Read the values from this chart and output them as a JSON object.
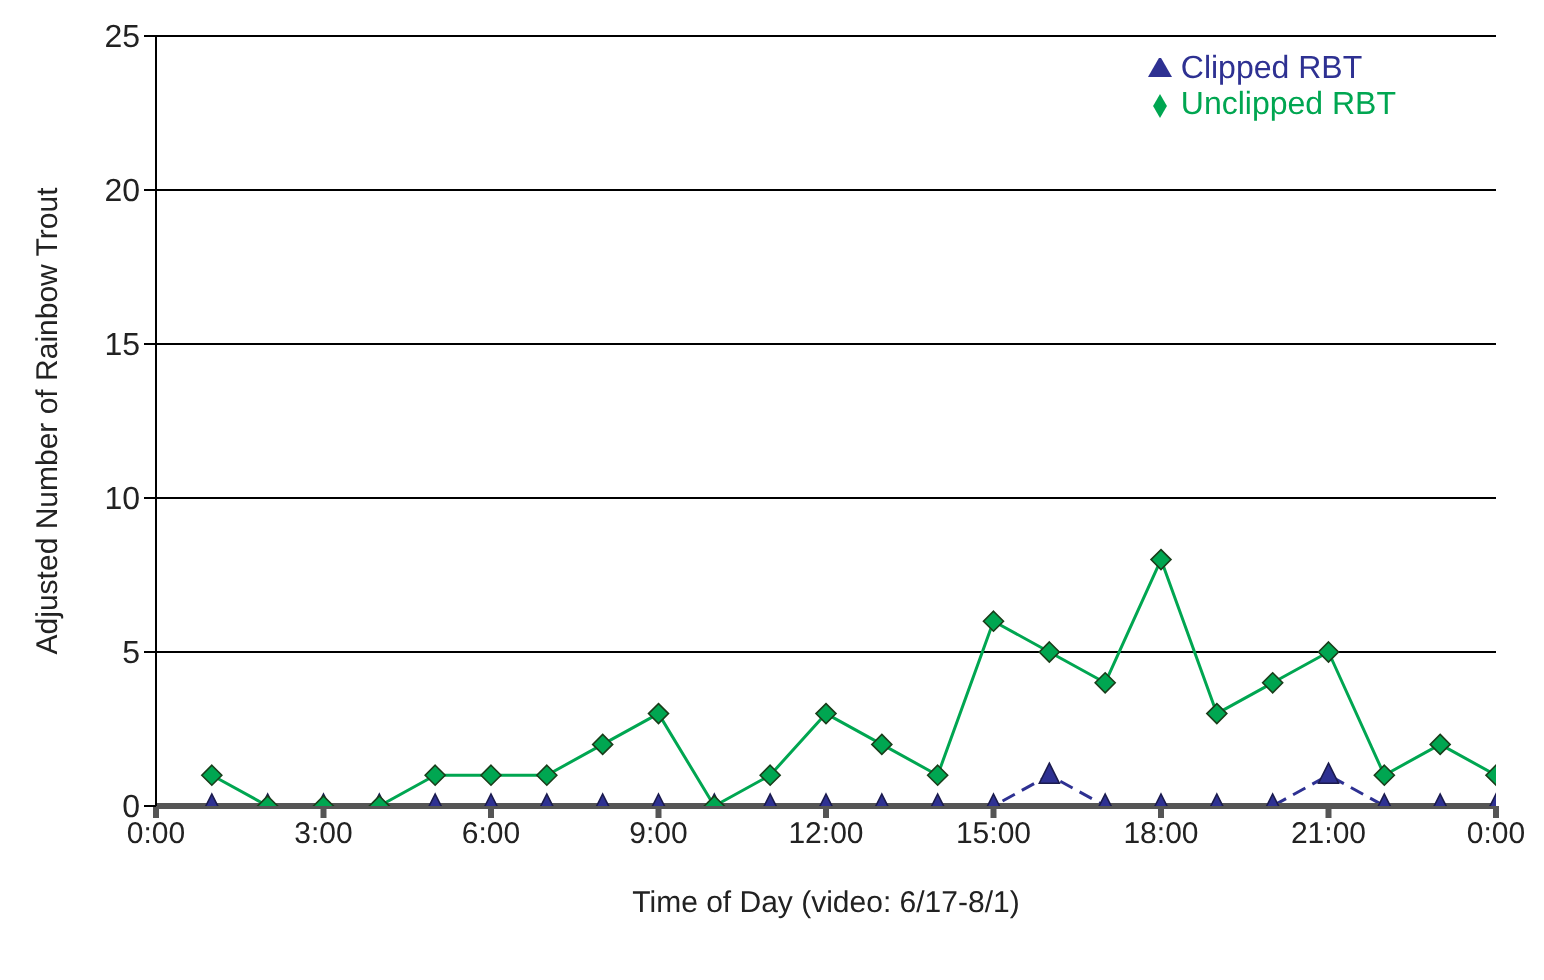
{
  "chart_data": {
    "type": "line",
    "xlabel": "Time of Day (video: 6/17-8/1)",
    "ylabel": "Adjusted Number of Rainbow Trout",
    "x": [
      1,
      2,
      3,
      4,
      5,
      6,
      7,
      8,
      9,
      10,
      11,
      12,
      13,
      14,
      15,
      16,
      17,
      18,
      19,
      20,
      21,
      22,
      23,
      24
    ],
    "series": [
      {
        "name": "Clipped RBT",
        "color": "#2e3192",
        "marker": "triangle",
        "line_style": "dashed",
        "values": [
          0,
          0,
          0,
          0,
          0,
          0,
          0,
          0,
          0,
          0,
          0,
          0,
          0,
          0,
          0,
          1,
          0,
          0,
          0,
          0,
          1,
          0,
          0,
          0
        ]
      },
      {
        "name": "Unclipped RBT",
        "color": "#00a651",
        "marker": "diamond",
        "line_style": "solid",
        "values": [
          1,
          0,
          0,
          0,
          1,
          1,
          1,
          2,
          3,
          0,
          1,
          3,
          2,
          1,
          6,
          5,
          4,
          8,
          3,
          4,
          5,
          1,
          2,
          1
        ]
      }
    ],
    "xlim": [
      0,
      24
    ],
    "xticks": [
      {
        "value": 0,
        "label": "0:00"
      },
      {
        "value": 3,
        "label": "3:00"
      },
      {
        "value": 6,
        "label": "6:00"
      },
      {
        "value": 9,
        "label": "9:00"
      },
      {
        "value": 12,
        "label": "12:00"
      },
      {
        "value": 15,
        "label": "15:00"
      },
      {
        "value": 18,
        "label": "18:00"
      },
      {
        "value": 21,
        "label": "21:00"
      },
      {
        "value": 24,
        "label": "0:00"
      }
    ],
    "ylim": [
      0,
      25
    ],
    "yticks": [
      0,
      5,
      10,
      15,
      20,
      25
    ],
    "grid": "y",
    "legend": "top right"
  }
}
